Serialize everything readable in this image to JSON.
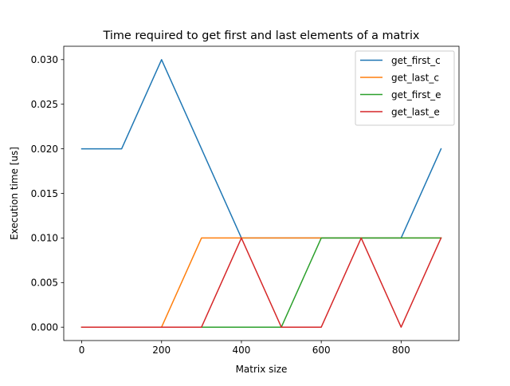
{
  "chart_data": {
    "type": "line",
    "title": "Time required to get first and last elements of a matrix",
    "xlabel": "Matrix size",
    "ylabel": "Execution time [us]",
    "xlim": [
      -45,
      945
    ],
    "ylim": [
      -0.0015,
      0.0315
    ],
    "x_ticks": [
      0,
      200,
      400,
      600,
      800
    ],
    "y_ticks": [
      0.0,
      0.005,
      0.01,
      0.015,
      0.02,
      0.025,
      0.03
    ],
    "x_tick_labels": [
      "0",
      "200",
      "400",
      "600",
      "800"
    ],
    "y_tick_labels": [
      "0.000",
      "0.005",
      "0.010",
      "0.015",
      "0.020",
      "0.025",
      "0.030"
    ],
    "grid": false,
    "legend_position": "top-right",
    "x": [
      0,
      100,
      200,
      300,
      400,
      500,
      600,
      700,
      800,
      900
    ],
    "series": [
      {
        "name": "get_first_c",
        "color": "#1f77b4",
        "values": [
          0.02,
          0.02,
          0.03,
          0.02,
          0.01,
          0.01,
          0.01,
          0.01,
          0.01,
          0.02
        ]
      },
      {
        "name": "get_last_c",
        "color": "#ff7f0e",
        "values": [
          0.0,
          0.0,
          0.0,
          0.01,
          0.01,
          0.01,
          0.01,
          0.01,
          0.01,
          0.01
        ]
      },
      {
        "name": "get_first_e",
        "color": "#2ca02c",
        "values": [
          0.0,
          0.0,
          0.0,
          0.0,
          0.0,
          0.0,
          0.01,
          0.01,
          0.01,
          0.01
        ]
      },
      {
        "name": "get_last_e",
        "color": "#d62728",
        "values": [
          0.0,
          0.0,
          0.0,
          0.0,
          0.01,
          0.0,
          0.0,
          0.01,
          0.0,
          0.01
        ]
      }
    ]
  }
}
